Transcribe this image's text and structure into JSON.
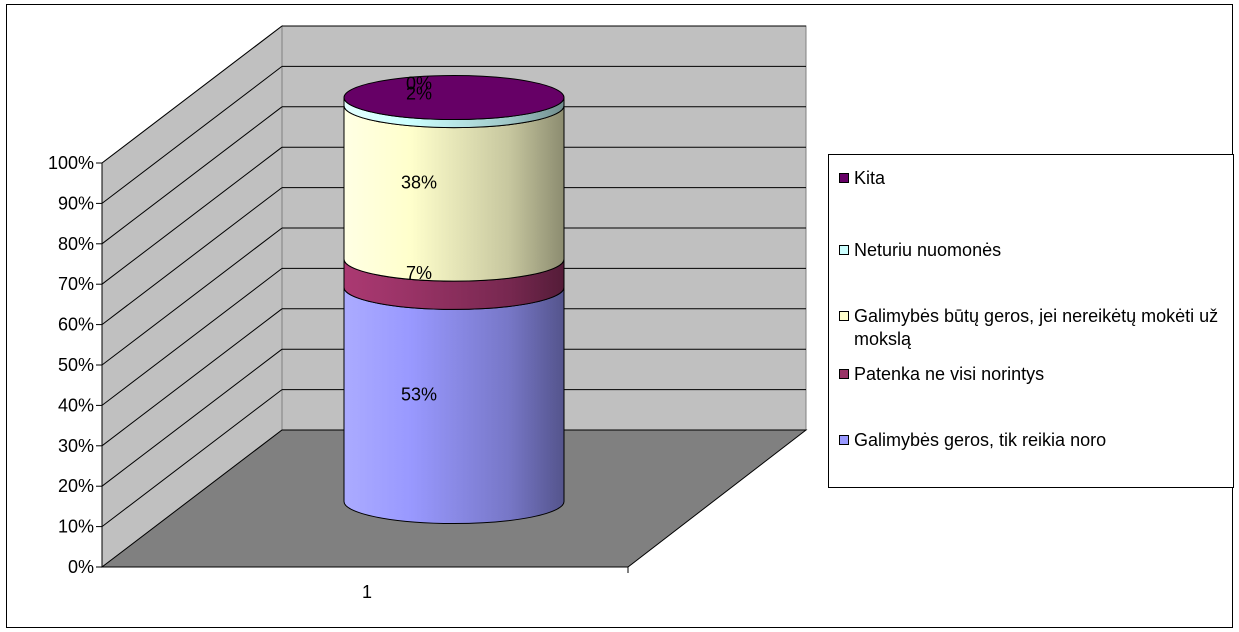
{
  "chart_data": {
    "type": "bar",
    "stacked": "percent",
    "shape": "3d-cylinder",
    "categories": [
      "1"
    ],
    "yticks": [
      "0%",
      "10%",
      "20%",
      "30%",
      "40%",
      "50%",
      "60%",
      "70%",
      "80%",
      "90%",
      "100%"
    ],
    "ylim": [
      0,
      100
    ],
    "grid": true,
    "legend_position": "right",
    "series": [
      {
        "name": "Galimybės geros, tik reikia noro",
        "values": [
          53
        ],
        "label": "53%",
        "color": "#9999FF"
      },
      {
        "name": "Patenka ne visi norintys",
        "values": [
          7
        ],
        "label": "7%",
        "color": "#993366"
      },
      {
        "name": "Galimybės būtų geros, jei nereikėtų mokėti už mokslą",
        "values": [
          38
        ],
        "label": "38%",
        "color": "#FFFFCC"
      },
      {
        "name": "Neturiu nuomonės",
        "values": [
          2
        ],
        "label": "2%",
        "color": "#CCFFFF"
      },
      {
        "name": "Kita",
        "values": [
          0
        ],
        "label": "0%",
        "color": "#660066"
      }
    ],
    "legend_order": [
      4,
      3,
      2,
      1,
      0
    ]
  },
  "colors": {
    "back_wall": "#C0C0C0",
    "side_wall": "#C0C0C0",
    "floor": "#808080",
    "gridline": "#000000"
  }
}
